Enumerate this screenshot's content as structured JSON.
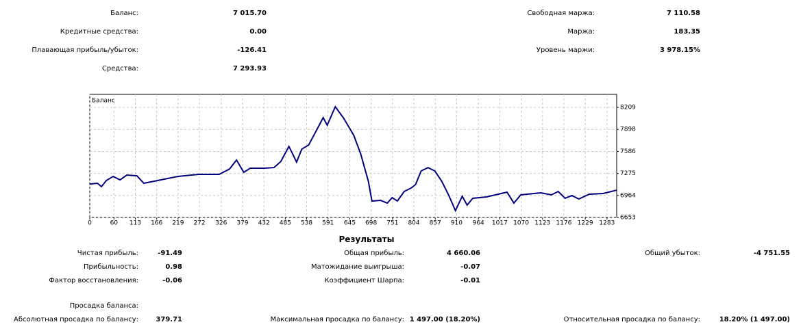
{
  "account": {
    "left": [
      {
        "label": "Баланс:",
        "value": "7 015.70"
      },
      {
        "label": "Кредитные средства:",
        "value": "0.00"
      },
      {
        "label": "Плавающая прибыль/убыток:",
        "value": "-126.41"
      },
      {
        "label": "Средства:",
        "value": "7 293.93"
      }
    ],
    "right": [
      {
        "label": "Свободная маржа:",
        "value": "7 110.58"
      },
      {
        "label": "Маржа:",
        "value": "183.35"
      },
      {
        "label": "Уровень маржи:",
        "value": "3 978.15%"
      }
    ]
  },
  "chart_data": {
    "type": "line",
    "x": [
      0,
      19,
      29,
      41,
      58,
      75,
      92,
      117,
      134,
      160,
      185,
      219,
      270,
      321,
      347,
      364,
      382,
      398,
      432,
      457,
      474,
      494,
      513,
      526,
      543,
      579,
      589,
      609,
      630,
      655,
      672,
      691,
      700,
      721,
      738,
      750,
      763,
      780,
      797,
      808,
      822,
      839,
      856,
      873,
      890,
      907,
      924,
      936,
      950,
      984,
      1035,
      1052,
      1069,
      1119,
      1145,
      1162,
      1179,
      1196,
      1213,
      1239,
      1273,
      1307
    ],
    "series": [
      {
        "name": "Баланс",
        "color": "#00007f",
        "values": [
          7126,
          7136,
          7088,
          7175,
          7233,
          7184,
          7252,
          7242,
          7136,
          7165,
          7194,
          7233,
          7262,
          7262,
          7339,
          7465,
          7291,
          7349,
          7349,
          7358,
          7445,
          7658,
          7436,
          7619,
          7677,
          8064,
          7957,
          8218,
          8054,
          7812,
          7552,
          7165,
          6885,
          6895,
          6856,
          6933,
          6885,
          7020,
          7068,
          7117,
          7310,
          7358,
          7310,
          7165,
          6972,
          6750,
          6953,
          6827,
          6924,
          6943,
          7010,
          6856,
          6972,
          7001,
          6972,
          7020,
          6924,
          6963,
          6914,
          6982,
          6991,
          7039
        ]
      }
    ],
    "xlim": [
      0,
      1307
    ],
    "ylim": [
      6653,
      8393
    ],
    "xticks": [
      0,
      60,
      113,
      166,
      219,
      272,
      326,
      379,
      432,
      485,
      538,
      591,
      645,
      698,
      751,
      804,
      857,
      910,
      964,
      1017,
      1070,
      1123,
      1176,
      1229,
      1283
    ],
    "yticks": [
      6653,
      6964,
      7275,
      7586,
      7898,
      8209
    ],
    "grid": true
  },
  "results": {
    "title": "Результаты",
    "columns": [
      [
        {
          "label": "Чистая прибыль:",
          "value": "-91.49"
        },
        {
          "label": "Прибыльность:",
          "value": "0.98"
        },
        {
          "label": "Фактор восстановления:",
          "value": "-0.06"
        }
      ],
      [
        {
          "label": "Общая прибыль:",
          "value": "4 660.06"
        },
        {
          "label": "Матожидание выигрыша:",
          "value": "-0.07"
        },
        {
          "label": "Коэффициент Шарпа:",
          "value": "-0.01"
        }
      ],
      [
        {
          "label": "Общий убыток:",
          "value": "-4 751.55"
        }
      ]
    ]
  },
  "drawdown": {
    "title": "Просадка баланса:",
    "items": [
      {
        "label": "Абсолютная просадка по балансу:",
        "value": "379.71"
      },
      {
        "label": "Максимальная просадка по балансу:",
        "value": "1 497.00 (18.20%)"
      },
      {
        "label": "Относительная просадка по балансу:",
        "value": "18.20% (1 497.00)"
      }
    ]
  }
}
